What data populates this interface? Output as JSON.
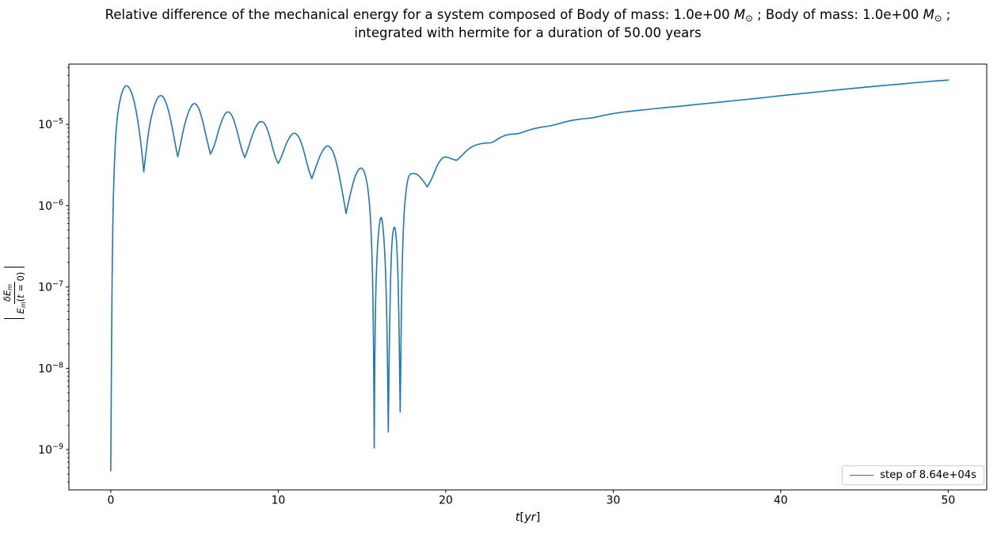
{
  "figure": {
    "title": {
      "line1_parts": [
        {
          "text": "Relative difference of the mechanical energy for a system composed of Body of mass: 1.0e+00 ",
          "style": "plain"
        },
        {
          "text": "M",
          "style": "italic"
        },
        {
          "text": "⊙",
          "style": "sub"
        },
        {
          "text": " ; Body of mass: 1.0e+00 ",
          "style": "plain"
        },
        {
          "text": "M",
          "style": "italic"
        },
        {
          "text": "⊙",
          "style": "sub"
        },
        {
          "text": " ;",
          "style": "plain"
        }
      ],
      "line2": "integrated with hermite for a duration of 50.00 years"
    }
  },
  "labels": {
    "xlabel_parts": [
      {
        "text": "t",
        "style": "italic"
      },
      {
        "text": "[",
        "style": "plain"
      },
      {
        "text": "yr",
        "style": "italic"
      },
      {
        "text": "]",
        "style": "plain"
      }
    ],
    "ylabel": {
      "num_parts": [
        {
          "text": "δE",
          "style": "italic"
        },
        {
          "text": "m",
          "style": "sub"
        }
      ],
      "den_parts": [
        {
          "text": "E",
          "style": "italic"
        },
        {
          "text": "m",
          "style": "sub"
        },
        {
          "text": "(",
          "style": "plain"
        },
        {
          "text": "t",
          "style": "italic"
        },
        {
          "text": " = 0)",
          "style": "plain"
        }
      ]
    }
  },
  "colors": {
    "line": "#1f77b4",
    "spine": "#000000",
    "text": "#000000",
    "legend_border": "#cccccc",
    "background": "#ffffff"
  },
  "chart_data": {
    "type": "line",
    "title": "Relative difference of the mechanical energy for a system composed of Body of mass: 1.0e+00 M⊙ ; Body of mass: 1.0e+00 M⊙ ; integrated with hermite for a duration of 50.00 years",
    "xlabel": "t[yr]",
    "ylabel": "|δE_m / E_m(t=0)|",
    "x_scale": "linear",
    "y_scale": "log",
    "xlim": [
      -2.5,
      52.3
    ],
    "ylim": [
      3.2e-10,
      5.5e-05
    ],
    "x_ticks": [
      0,
      10,
      20,
      30,
      40,
      50
    ],
    "y_tick_exponents": [
      -5,
      -6,
      -7,
      -8,
      -9
    ],
    "grid": false,
    "legend": {
      "position": "lower right",
      "entries": [
        "step of 8.64e+04s"
      ]
    },
    "series": [
      {
        "name": "step of 8.64e+04s",
        "color": "#1f77b4",
        "points": [
          [
            0,
            5.5e-10
          ],
          [
            0.03,
            5e-09
          ],
          [
            0.06,
            5e-08
          ],
          [
            0.1,
            3e-07
          ],
          [
            0.15,
            1.2e-06
          ],
          [
            0.22,
            3.5e-06
          ],
          [
            0.3,
            7.5e-06
          ],
          [
            0.4,
            1.3e-05
          ],
          [
            0.55,
            2e-05
          ],
          [
            0.7,
            2.6e-05
          ],
          [
            0.85,
            2.95e-05
          ],
          [
            0.95,
            3e-05
          ],
          [
            1.1,
            2.85e-05
          ],
          [
            1.3,
            2.3e-05
          ],
          [
            1.5,
            1.55e-05
          ],
          [
            1.7,
            8.5e-06
          ],
          [
            1.85,
            4.8e-06
          ],
          [
            1.97,
            2.6e-06
          ],
          [
            2.1,
            4.5e-06
          ],
          [
            2.3,
            9.5e-06
          ],
          [
            2.55,
            1.6e-05
          ],
          [
            2.8,
            2.15e-05
          ],
          [
            3,
            2.3e-05
          ],
          [
            3.2,
            2.1e-05
          ],
          [
            3.45,
            1.5e-05
          ],
          [
            3.7,
            8.5e-06
          ],
          [
            3.9,
            5e-06
          ],
          [
            4,
            4e-06
          ],
          [
            4.15,
            5.5e-06
          ],
          [
            4.4,
            1e-05
          ],
          [
            4.7,
            1.55e-05
          ],
          [
            4.95,
            1.85e-05
          ],
          [
            5.2,
            1.7e-05
          ],
          [
            5.45,
            1.2e-05
          ],
          [
            5.7,
            7e-06
          ],
          [
            5.95,
            4.3e-06
          ],
          [
            6.2,
            5.5e-06
          ],
          [
            6.5,
            9.5e-06
          ],
          [
            6.8,
            1.35e-05
          ],
          [
            7,
            1.45e-05
          ],
          [
            7.25,
            1.3e-05
          ],
          [
            7.5,
            9e-06
          ],
          [
            7.8,
            5e-06
          ],
          [
            8,
            3.9e-06
          ],
          [
            8.2,
            5e-06
          ],
          [
            8.5,
            8e-06
          ],
          [
            8.8,
            1.05e-05
          ],
          [
            9,
            1.1e-05
          ],
          [
            9.25,
            1e-05
          ],
          [
            9.5,
            7e-06
          ],
          [
            9.8,
            4e-06
          ],
          [
            10,
            3.3e-06
          ],
          [
            10.2,
            4e-06
          ],
          [
            10.5,
            6e-06
          ],
          [
            10.8,
            7.6e-06
          ],
          [
            11,
            7.9e-06
          ],
          [
            11.25,
            7e-06
          ],
          [
            11.5,
            5e-06
          ],
          [
            11.8,
            2.8e-06
          ],
          [
            12,
            2.15e-06
          ],
          [
            12.2,
            2.8e-06
          ],
          [
            12.5,
            4.2e-06
          ],
          [
            12.8,
            5.3e-06
          ],
          [
            13,
            5.5e-06
          ],
          [
            13.25,
            4.8e-06
          ],
          [
            13.5,
            3.3e-06
          ],
          [
            13.8,
            1.6e-06
          ],
          [
            14.05,
            8e-07
          ],
          [
            14.3,
            1.4e-06
          ],
          [
            14.6,
            2.4e-06
          ],
          [
            14.9,
            3e-06
          ],
          [
            15.15,
            2.7e-06
          ],
          [
            15.4,
            1.5e-06
          ],
          [
            15.58,
            4e-07
          ],
          [
            15.68,
            4e-08
          ],
          [
            15.73,
            1.05e-09
          ],
          [
            15.78,
            4e-08
          ],
          [
            15.9,
            3e-07
          ],
          [
            16.1,
            8e-07
          ],
          [
            16.25,
            6e-07
          ],
          [
            16.4,
            2e-07
          ],
          [
            16.5,
            3e-08
          ],
          [
            16.57,
            1.65e-09
          ],
          [
            16.64,
            3e-08
          ],
          [
            16.75,
            3e-07
          ],
          [
            16.9,
            6e-07
          ],
          [
            17.05,
            4.5e-07
          ],
          [
            17.18,
            1e-07
          ],
          [
            17.28,
            2.9e-09
          ],
          [
            17.38,
            1.5e-07
          ],
          [
            17.5,
            8e-07
          ],
          [
            17.65,
            1.7e-06
          ],
          [
            17.8,
            2.4e-06
          ],
          [
            18,
            2.5e-06
          ],
          [
            18.3,
            2.45e-06
          ],
          [
            18.6,
            2.1e-06
          ],
          [
            18.9,
            1.7e-06
          ],
          [
            19.2,
            2.2e-06
          ],
          [
            19.5,
            3.2e-06
          ],
          [
            19.8,
            3.9e-06
          ],
          [
            20.05,
            4e-06
          ],
          [
            20.35,
            3.75e-06
          ],
          [
            20.65,
            3.6e-06
          ],
          [
            20.95,
            4.1e-06
          ],
          [
            21.3,
            4.9e-06
          ],
          [
            21.7,
            5.5e-06
          ],
          [
            22.1,
            5.8e-06
          ],
          [
            22.45,
            5.9e-06
          ],
          [
            22.75,
            5.9e-06
          ],
          [
            23.1,
            6.6e-06
          ],
          [
            23.5,
            7.3e-06
          ],
          [
            23.9,
            7.6e-06
          ],
          [
            24.3,
            7.6e-06
          ],
          [
            24.8,
            8.3e-06
          ],
          [
            25.3,
            8.9e-06
          ],
          [
            25.8,
            9.3e-06
          ],
          [
            26.3,
            9.6e-06
          ],
          [
            26.9,
            1.04e-05
          ],
          [
            27.5,
            1.12e-05
          ],
          [
            28.2,
            1.17e-05
          ],
          [
            28.8,
            1.2e-05
          ],
          [
            29.5,
            1.3e-05
          ],
          [
            30.2,
            1.38e-05
          ],
          [
            31,
            1.45e-05
          ],
          [
            32,
            1.52e-05
          ],
          [
            33,
            1.6e-05
          ],
          [
            34,
            1.67e-05
          ],
          [
            35,
            1.76e-05
          ],
          [
            36,
            1.84e-05
          ],
          [
            37,
            1.93e-05
          ],
          [
            38,
            2.03e-05
          ],
          [
            39,
            2.13e-05
          ],
          [
            40,
            2.25e-05
          ],
          [
            41,
            2.36e-05
          ],
          [
            42,
            2.48e-05
          ],
          [
            43,
            2.6e-05
          ],
          [
            44,
            2.73e-05
          ],
          [
            45,
            2.85e-05
          ],
          [
            46,
            2.98e-05
          ],
          [
            47,
            3.1e-05
          ],
          [
            48,
            3.25e-05
          ],
          [
            49,
            3.38e-05
          ],
          [
            50,
            3.5e-05
          ]
        ]
      }
    ]
  }
}
